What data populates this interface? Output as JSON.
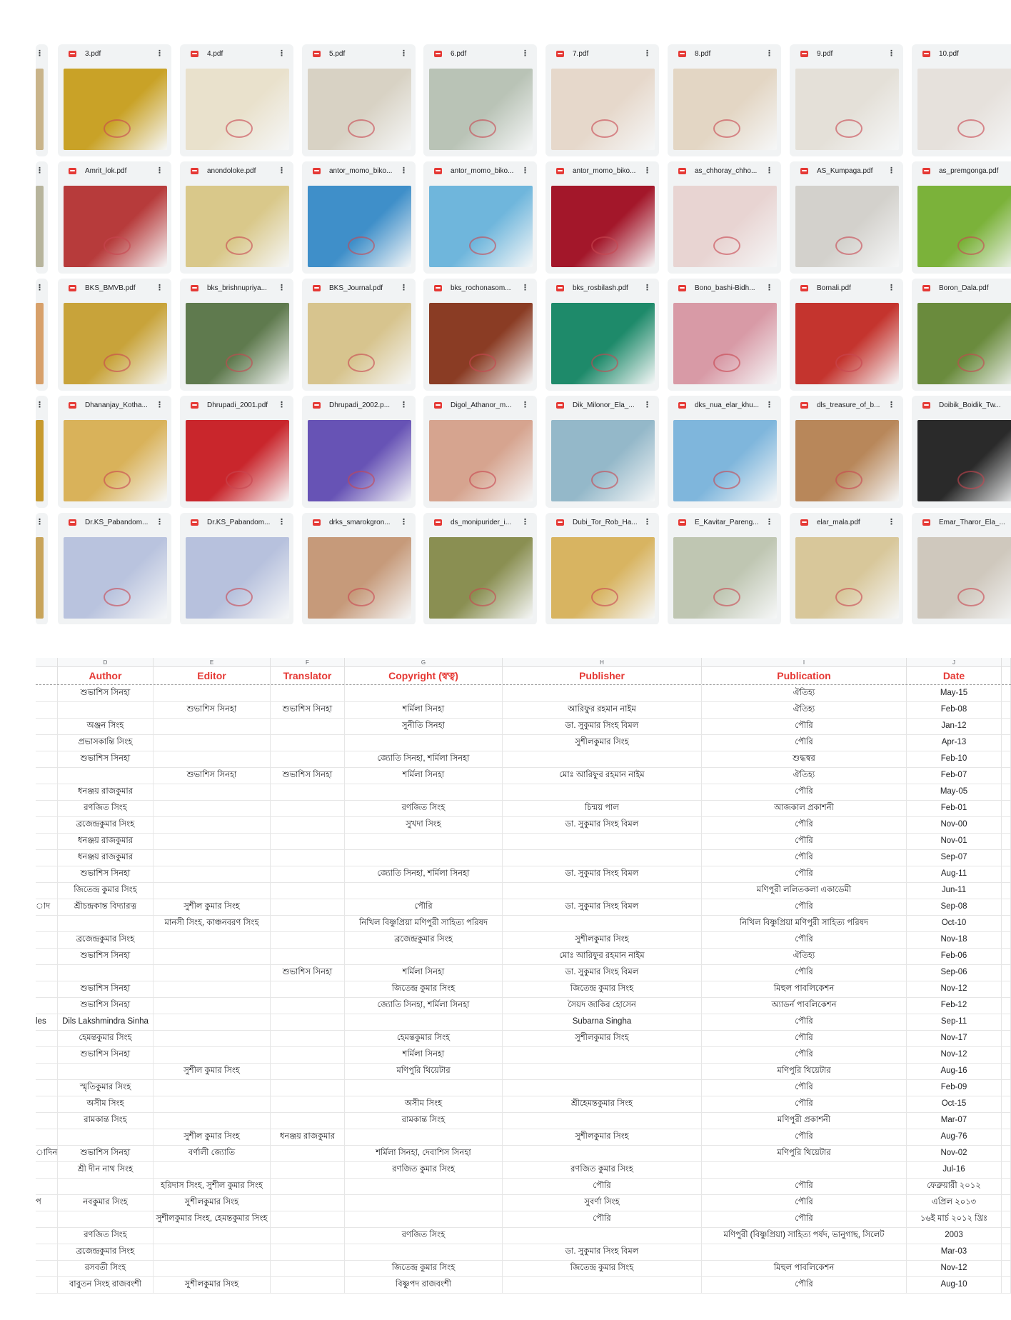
{
  "drive": {
    "rows": [
      {
        "files": [
          {
            "name": "3.pdf",
            "thumb": "#c9a227"
          },
          {
            "name": "4.pdf",
            "thumb": "#e9e1cc"
          },
          {
            "name": "5.pdf",
            "thumb": "#d8d2c4"
          },
          {
            "name": "6.pdf",
            "thumb": "#b9c3b6"
          },
          {
            "name": "7.pdf",
            "thumb": "#e6d8cb"
          },
          {
            "name": "8.pdf",
            "thumb": "#e3d6c4"
          },
          {
            "name": "9.pdf",
            "thumb": "#e4e0d8"
          },
          {
            "name": "10.pdf",
            "thumb": "#e6e1dc"
          }
        ]
      },
      {
        "files": [
          {
            "name": "Amrit_lok.pdf",
            "thumb": "#b73b3b"
          },
          {
            "name": "anondoloke.pdf",
            "thumb": "#d9c88a"
          },
          {
            "name": "antor_momo_biko...",
            "thumb": "#3f8fc9"
          },
          {
            "name": "antor_momo_biko...",
            "thumb": "#6fb6dc"
          },
          {
            "name": "antor_momo_biko...",
            "thumb": "#a3172a"
          },
          {
            "name": "as_chhoray_chho...",
            "thumb": "#e8d4d2"
          },
          {
            "name": "AS_Kumpaga.pdf",
            "thumb": "#d3d1cc"
          },
          {
            "name": "as_premgonga.pdf",
            "thumb": "#7bb23a"
          }
        ]
      },
      {
        "files": [
          {
            "name": "BKS_BMVB.pdf",
            "thumb": "#c8a33a"
          },
          {
            "name": "bks_brishnupriya...",
            "thumb": "#5f7a4e"
          },
          {
            "name": "BKS_Journal.pdf",
            "thumb": "#d7c48e"
          },
          {
            "name": "bks_rochonasom...",
            "thumb": "#8a3c24"
          },
          {
            "name": "bks_rosbilash.pdf",
            "thumb": "#1e8a6a"
          },
          {
            "name": "Bono_bashi-Bidh...",
            "thumb": "#d89aa6"
          },
          {
            "name": "Bornali.pdf",
            "thumb": "#c4342e"
          },
          {
            "name": "Boron_Dala.pdf",
            "thumb": "#6a8b3d"
          }
        ]
      },
      {
        "files": [
          {
            "name": "Dhananjay_Kotha...",
            "thumb": "#d9b25a"
          },
          {
            "name": "Dhrupadi_2001.pdf",
            "thumb": "#c9262c"
          },
          {
            "name": "Dhrupadi_2002.p...",
            "thumb": "#6753b5"
          },
          {
            "name": "Digol_Athanor_m...",
            "thumb": "#d6a48f"
          },
          {
            "name": "Dik_Milonor_Ela_...",
            "thumb": "#94b8c9"
          },
          {
            "name": "dks_nua_elar_khu...",
            "thumb": "#7fb6dc"
          },
          {
            "name": "dls_treasure_of_b...",
            "thumb": "#b8875a"
          },
          {
            "name": "Doibik_Boidik_Tw...",
            "thumb": "#2a2a2a"
          }
        ]
      },
      {
        "files": [
          {
            "name": "Dr.KS_Pabandom...",
            "thumb": "#b9c3de"
          },
          {
            "name": "Dr.KS_Pabandom...",
            "thumb": "#b7c1dd"
          },
          {
            "name": "drks_smarokgron...",
            "thumb": "#c69a7a"
          },
          {
            "name": "ds_monipurider_i...",
            "thumb": "#8a8f52"
          },
          {
            "name": "Dubi_Tor_Rob_Ha...",
            "thumb": "#d8b461"
          },
          {
            "name": "E_Kavitar_Pareng...",
            "thumb": "#bfc6b2"
          },
          {
            "name": "elar_mala.pdf",
            "thumb": "#d8c79a"
          },
          {
            "name": "Emar_Tharor_Ela_...",
            "thumb": "#cfc8bd"
          }
        ]
      }
    ],
    "partial_thumbs": [
      "#c9b48a",
      "#b7b49c",
      "#d7a06a",
      "#c79a2e",
      "#c8a45a"
    ]
  },
  "sheet": {
    "column_letters": [
      "D",
      "E",
      "F",
      "G",
      "H",
      "I",
      "J"
    ],
    "headers": [
      "Author",
      "Editor",
      "Translator",
      "Copyright (স্বত্ব)",
      "Publisher",
      "Publication",
      "Date"
    ],
    "rows": [
      [
        "",
        "শুভাশিস সিনহা",
        "",
        "",
        "",
        "",
        "ঐতিহ্য",
        "May-15"
      ],
      [
        "",
        "",
        "শুভাশিস সিনহা",
        "শুভাশিস সিনহা",
        "শর্মিলা সিনহা",
        "আরিফুর রহমান নাইম",
        "ঐতিহ্য",
        "Feb-08"
      ],
      [
        "",
        "অঞ্জন সিংহ",
        "",
        "",
        "সুনীতি সিনহা",
        "ডা. সুকুমার সিংহ বিমল",
        "পৌরি",
        "Jan-12"
      ],
      [
        "",
        "প্রভাসকান্তি সিংহ",
        "",
        "",
        "",
        "সুশীলকুমার সিংহ",
        "পৌরি",
        "Apr-13"
      ],
      [
        "",
        "শুভাশিস সিনহা",
        "",
        "",
        "জ্যোতি সিনহা, শর্মিলা সিনহা",
        "",
        "শুদ্ধস্বর",
        "Feb-10"
      ],
      [
        "",
        "",
        "শুভাশিস সিনহা",
        "শুভাশিস সিনহা",
        "শর্মিলা সিনহা",
        "মোঃ আরিফুর রহমান নাইম",
        "ঐতিহ্য",
        "Feb-07"
      ],
      [
        "",
        "ধনঞ্জয় রাজকুমার",
        "",
        "",
        "",
        "",
        "পৌরি",
        "May-05"
      ],
      [
        "",
        "রণজিত সিংহ",
        "",
        "",
        "রণজিত সিংহ",
        "চিন্ময় পাল",
        "আজকাল প্রকাশনী",
        "Feb-01"
      ],
      [
        "",
        "ব্রজেন্দ্রকুমার সিংহ",
        "",
        "",
        "সুখদা সিংহ",
        "ডা. সুকুমার সিংহ বিমল",
        "পৌরি",
        "Nov-00"
      ],
      [
        "",
        "ধনঞ্জয় রাজকুমার",
        "",
        "",
        "",
        "",
        "পৌরি",
        "Nov-01"
      ],
      [
        "",
        "ধনঞ্জয় রাজকুমার",
        "",
        "",
        "",
        "",
        "পৌরি",
        "Sep-07"
      ],
      [
        "",
        "শুভাশিস সিনহা",
        "",
        "",
        "জ্যোতি সিনহা, শর্মিলা সিনহা",
        "ডা. সুকুমার সিংহ বিমল",
        "পৌরি",
        "Aug-11"
      ],
      [
        "",
        "জিতেন্দ্র কুমার সিংহ",
        "",
        "",
        "",
        "",
        "মণিপুরী ললিতকলা একাডেমী",
        "Jun-11"
      ],
      [
        "াদ",
        "শ্রীচন্দ্রকান্ত বিদ্যারত্ন",
        "সুশীল কুমার সিংহ",
        "",
        "পৌরি",
        "ডা. সুকুমার সিংহ বিমল",
        "পৌরি",
        "Sep-08"
      ],
      [
        "",
        "",
        "মানসী সিংহ, কাঞ্চনবরণ সিংহ",
        "",
        "নিখিল বিষ্ণুপ্রিয়া মণিপুরী সাহিত্য পরিষদ",
        "",
        "নিখিল বিষ্ণুপ্রিয়া মণিপুরী সাহিত্য পরিষদ",
        "Oct-10"
      ],
      [
        "",
        "ব্রজেন্দ্রকুমার সিংহ",
        "",
        "",
        "ব্রজেন্দ্রকুমার সিংহ",
        "সুশীলকুমার সিংহ",
        "পৌরি",
        "Nov-18"
      ],
      [
        "",
        "শুভাশিস সিনহা",
        "",
        "",
        "",
        "মোঃ আরিফুর রহমান নাইম",
        "ঐতিহ্য",
        "Feb-06"
      ],
      [
        "",
        "",
        "",
        "শুভাশিস সিনহা",
        "শর্মিলা সিনহা",
        "ডা. সুকুমার সিংহ বিমল",
        "পৌরি",
        "Sep-06"
      ],
      [
        "",
        "শুভাশিস সিনহা",
        "",
        "",
        "জিতেন্দ্র কুমার সিংহ",
        "জিতেন্দ্র কুমার সিংহ",
        "মিহুল পাবলিকেশন",
        "Nov-12"
      ],
      [
        "",
        "শুভাশিস সিনহা",
        "",
        "",
        "জ্যোতি সিনহা, শর্মিলা সিনহা",
        "সৈয়দ জাকির হোসেন",
        "অ্যাডর্ন পাবলিকেশন",
        "Feb-12"
      ],
      [
        "les",
        "Dils Lakshmindra Sinha",
        "",
        "",
        "",
        "Subarna Singha",
        "পৌরি",
        "Sep-11"
      ],
      [
        "",
        "হেমন্তকুমার সিংহ",
        "",
        "",
        "হেমন্তকুমার সিংহ",
        "সুশীলকুমার সিংহ",
        "পৌরি",
        "Nov-17"
      ],
      [
        "",
        "শুভাশিস সিনহা",
        "",
        "",
        "শর্মিলা সিনহা",
        "",
        "পৌরি",
        "Nov-12"
      ],
      [
        "",
        "",
        "সুশীল কুমার সিংহ",
        "",
        "মণিপুরি থিয়েটার",
        "",
        "মণিপুরি থিয়েটার",
        "Aug-16"
      ],
      [
        "",
        "স্মৃতিকুমার সিংহ",
        "",
        "",
        "",
        "",
        "পৌরি",
        "Feb-09"
      ],
      [
        "",
        "অসীম সিংহ",
        "",
        "",
        "অসীম সিংহ",
        "শ্রীহেমন্তকুমার সিংহ",
        "পৌরি",
        "Oct-15"
      ],
      [
        "",
        "রামকান্ত সিংহ",
        "",
        "",
        "রামকান্ত সিংহ",
        "",
        "মণিপুরী প্রকাশনী",
        "Mar-07"
      ],
      [
        "",
        "",
        "সুশীল কুমার সিংহ",
        "ধনঞ্জয় রাজকুমার",
        "",
        "সুশীলকুমার সিংহ",
        "পৌরি",
        "Aug-76"
      ],
      [
        "াদিন",
        "শুভাশিস সিনহা",
        "বর্ণালী জ্যোতি",
        "",
        "শর্মিলা সিনহা, দেবাশিস সিনহা",
        "",
        "মণিপুরি থিয়েটার",
        "Nov-02"
      ],
      [
        "",
        "শ্রী দীন নাথ সিংহ",
        "",
        "",
        "রণজিত কুমার সিংহ",
        "রণজিত কুমার সিংহ",
        "",
        "Jul-16"
      ],
      [
        "",
        "",
        "হরিদাস সিংহ, সুশীল কুমার সিংহ",
        "",
        "",
        "পৌরি",
        "পৌরি",
        "ফেব্রুয়ারী ২০১২"
      ],
      [
        "প",
        "নবকুমার সিংহ",
        "সুশীলকুমার সিংহ",
        "",
        "",
        "সুবর্ণা সিংহ",
        "পৌরি",
        "এপ্রিল ২০১৩"
      ],
      [
        "",
        "",
        "সুশীলকুমার সিংহ, হেমন্তকুমার সিংহ",
        "",
        "",
        "পৌরি",
        "পৌরি",
        "১৬ই মার্চ ২০১২ খ্রিঃ"
      ],
      [
        "",
        "রণজিত সিংহ",
        "",
        "",
        "রণজিত সিংহ",
        "",
        "মণিপুরী (বিষ্ণুপ্রিয়া) সাহিত্য পর্ষদ, ভানুগাছ, সিলেট",
        "2003"
      ],
      [
        "",
        "ব্রজেন্দ্রকুমার সিংহ",
        "",
        "",
        "",
        "ডা. সুকুমার সিংহ বিমল",
        "",
        "Mar-03"
      ],
      [
        "",
        "রসবতী সিংহ",
        "",
        "",
        "জিতেন্দ্র কুমার সিংহ",
        "জিতেন্দ্র কুমার সিংহ",
        "মিহুল পাবলিকেশন",
        "Nov-12"
      ],
      [
        "",
        "বাবুতন সিংহ রাজবংশী",
        "সুশীলকুমার সিংহ",
        "",
        "বিষ্ণুপদ রাজবংশী",
        "",
        "পৌরি",
        "Aug-10"
      ]
    ]
  }
}
